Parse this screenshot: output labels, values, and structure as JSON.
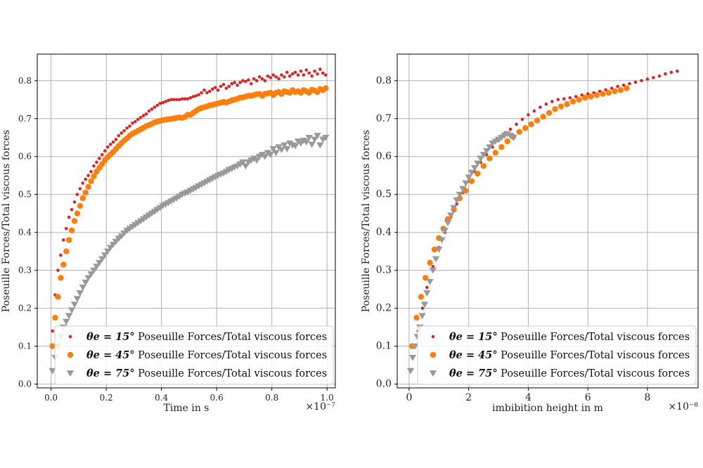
{
  "chart_data": [
    {
      "type": "scatter",
      "xlabel": "Time in s",
      "ylabel": "Poseuille Forces/Total viscous forces",
      "x_offset_label": "×10⁻⁷",
      "xlim": [
        -0.05,
        1.03
      ],
      "ylim": [
        -0.01,
        0.87
      ],
      "x_ticks": [
        0.0,
        0.2,
        0.4,
        0.6,
        0.8,
        1.0
      ],
      "x_tick_labels": [
        "0.0",
        "0.2",
        "0.4",
        "0.6",
        "0.8",
        "1.0"
      ],
      "y_ticks": [
        0.0,
        0.1,
        0.2,
        0.3,
        0.4,
        0.5,
        0.6,
        0.7,
        0.8
      ],
      "y_tick_labels": [
        "0.0",
        "0.1",
        "0.2",
        "0.3",
        "0.4",
        "0.5",
        "0.6",
        "0.7",
        "0.8"
      ],
      "grid": true,
      "legend_position": "bottom-right",
      "series": [
        {
          "name": "θe = 15° Poseuille Forces/Total viscous forces",
          "legend_math": "θe = 15°",
          "legend_text": "Poseuille Forces/Total viscous forces",
          "color": "#d62728",
          "marker": "small-dot",
          "x": [
            0.005,
            0.015,
            0.025,
            0.035,
            0.045,
            0.055,
            0.065,
            0.075,
            0.085,
            0.095,
            0.105,
            0.115,
            0.125,
            0.135,
            0.145,
            0.155,
            0.165,
            0.175,
            0.185,
            0.195,
            0.205,
            0.215,
            0.225,
            0.235,
            0.245,
            0.255,
            0.265,
            0.275,
            0.285,
            0.295,
            0.305,
            0.315,
            0.325,
            0.335,
            0.345,
            0.355,
            0.365,
            0.375,
            0.385,
            0.395,
            0.405,
            0.415,
            0.425,
            0.435,
            0.445,
            0.455,
            0.465,
            0.475,
            0.485,
            0.495,
            0.505,
            0.515,
            0.525,
            0.535,
            0.545,
            0.555,
            0.565,
            0.575,
            0.585,
            0.595,
            0.605,
            0.615,
            0.625,
            0.635,
            0.645,
            0.655,
            0.665,
            0.675,
            0.685,
            0.695,
            0.705,
            0.715,
            0.725,
            0.735,
            0.745,
            0.755,
            0.765,
            0.775,
            0.785,
            0.795,
            0.805,
            0.815,
            0.825,
            0.835,
            0.845,
            0.855,
            0.865,
            0.875,
            0.885,
            0.895,
            0.905,
            0.915,
            0.925,
            0.935,
            0.945,
            0.955,
            0.965,
            0.975,
            0.985,
            0.995
          ],
          "y": [
            0.14,
            0.235,
            0.3,
            0.34,
            0.38,
            0.41,
            0.44,
            0.46,
            0.48,
            0.5,
            0.515,
            0.53,
            0.54,
            0.55,
            0.56,
            0.575,
            0.585,
            0.595,
            0.605,
            0.615,
            0.625,
            0.632,
            0.638,
            0.645,
            0.655,
            0.662,
            0.668,
            0.675,
            0.68,
            0.688,
            0.692,
            0.698,
            0.703,
            0.708,
            0.712,
            0.72,
            0.725,
            0.73,
            0.735,
            0.74,
            0.742,
            0.745,
            0.748,
            0.75,
            0.75,
            0.75,
            0.75,
            0.752,
            0.752,
            0.752,
            0.755,
            0.758,
            0.76,
            0.763,
            0.768,
            0.775,
            0.768,
            0.772,
            0.778,
            0.782,
            0.775,
            0.785,
            0.79,
            0.78,
            0.785,
            0.792,
            0.795,
            0.788,
            0.795,
            0.8,
            0.798,
            0.802,
            0.792,
            0.805,
            0.8,
            0.81,
            0.805,
            0.8,
            0.812,
            0.808,
            0.815,
            0.81,
            0.805,
            0.815,
            0.81,
            0.822,
            0.812,
            0.818,
            0.822,
            0.815,
            0.825,
            0.815,
            0.828,
            0.82,
            0.812,
            0.825,
            0.818,
            0.83,
            0.82,
            0.815
          ]
        },
        {
          "name": "θe = 45° Poseuille Forces/Total viscous forces",
          "legend_math": "θe = 45°",
          "legend_text": "Poseuille Forces/Total viscous forces",
          "color": "#ff7f0e",
          "marker": "large-dot",
          "x": [
            0.005,
            0.015,
            0.025,
            0.035,
            0.045,
            0.055,
            0.065,
            0.075,
            0.085,
            0.095,
            0.105,
            0.115,
            0.125,
            0.135,
            0.145,
            0.155,
            0.165,
            0.175,
            0.185,
            0.195,
            0.205,
            0.215,
            0.225,
            0.235,
            0.245,
            0.255,
            0.265,
            0.275,
            0.285,
            0.295,
            0.305,
            0.315,
            0.325,
            0.335,
            0.345,
            0.355,
            0.365,
            0.375,
            0.385,
            0.395,
            0.405,
            0.415,
            0.425,
            0.435,
            0.445,
            0.455,
            0.465,
            0.475,
            0.485,
            0.495,
            0.505,
            0.515,
            0.525,
            0.535,
            0.545,
            0.555,
            0.565,
            0.575,
            0.585,
            0.595,
            0.605,
            0.615,
            0.625,
            0.635,
            0.645,
            0.655,
            0.665,
            0.675,
            0.685,
            0.695,
            0.705,
            0.715,
            0.725,
            0.735,
            0.745,
            0.755,
            0.765,
            0.775,
            0.785,
            0.795,
            0.805,
            0.815,
            0.825,
            0.835,
            0.845,
            0.855,
            0.865,
            0.875,
            0.885,
            0.895,
            0.905,
            0.915,
            0.925,
            0.935,
            0.945,
            0.955,
            0.965,
            0.975,
            0.985,
            0.995
          ],
          "y": [
            0.1,
            0.175,
            0.23,
            0.28,
            0.315,
            0.35,
            0.38,
            0.405,
            0.43,
            0.45,
            0.47,
            0.49,
            0.505,
            0.52,
            0.535,
            0.548,
            0.56,
            0.57,
            0.58,
            0.59,
            0.598,
            0.605,
            0.612,
            0.62,
            0.628,
            0.635,
            0.642,
            0.648,
            0.655,
            0.66,
            0.664,
            0.668,
            0.672,
            0.676,
            0.68,
            0.683,
            0.686,
            0.69,
            0.692,
            0.694,
            0.696,
            0.697,
            0.698,
            0.699,
            0.7,
            0.702,
            0.703,
            0.702,
            0.704,
            0.71,
            0.71,
            0.715,
            0.72,
            0.725,
            0.728,
            0.73,
            0.732,
            0.735,
            0.736,
            0.738,
            0.74,
            0.742,
            0.744,
            0.742,
            0.745,
            0.748,
            0.75,
            0.752,
            0.755,
            0.756,
            0.758,
            0.76,
            0.76,
            0.762,
            0.764,
            0.765,
            0.76,
            0.765,
            0.766,
            0.768,
            0.762,
            0.768,
            0.77,
            0.765,
            0.772,
            0.77,
            0.768,
            0.775,
            0.77,
            0.772,
            0.768,
            0.775,
            0.772,
            0.768,
            0.776,
            0.774,
            0.77,
            0.778,
            0.775,
            0.78
          ]
        },
        {
          "name": "θe = 75° Poseuille Forces/Total viscous forces",
          "legend_math": "θe = 75°",
          "legend_text": "Poseuille Forces/Total viscous forces",
          "color": "#999999",
          "marker": "triangle-down",
          "x": [
            0.005,
            0.015,
            0.025,
            0.035,
            0.045,
            0.055,
            0.065,
            0.075,
            0.085,
            0.095,
            0.105,
            0.115,
            0.125,
            0.135,
            0.145,
            0.155,
            0.165,
            0.175,
            0.185,
            0.195,
            0.205,
            0.215,
            0.225,
            0.235,
            0.245,
            0.255,
            0.265,
            0.275,
            0.285,
            0.295,
            0.305,
            0.315,
            0.325,
            0.335,
            0.345,
            0.355,
            0.365,
            0.375,
            0.385,
            0.395,
            0.405,
            0.415,
            0.425,
            0.435,
            0.445,
            0.455,
            0.465,
            0.475,
            0.485,
            0.495,
            0.505,
            0.515,
            0.525,
            0.535,
            0.545,
            0.555,
            0.565,
            0.575,
            0.585,
            0.595,
            0.605,
            0.615,
            0.625,
            0.635,
            0.645,
            0.655,
            0.665,
            0.675,
            0.685,
            0.695,
            0.705,
            0.715,
            0.725,
            0.735,
            0.745,
            0.755,
            0.765,
            0.775,
            0.785,
            0.795,
            0.805,
            0.815,
            0.825,
            0.835,
            0.845,
            0.855,
            0.865,
            0.875,
            0.885,
            0.895,
            0.905,
            0.915,
            0.925,
            0.935,
            0.945,
            0.955,
            0.965,
            0.975,
            0.985,
            0.995
          ],
          "y": [
            0.035,
            0.07,
            0.1,
            0.125,
            0.15,
            0.165,
            0.18,
            0.195,
            0.21,
            0.225,
            0.24,
            0.255,
            0.268,
            0.28,
            0.29,
            0.3,
            0.31,
            0.32,
            0.33,
            0.34,
            0.35,
            0.36,
            0.368,
            0.376,
            0.384,
            0.39,
            0.398,
            0.405,
            0.41,
            0.415,
            0.42,
            0.425,
            0.43,
            0.435,
            0.44,
            0.445,
            0.45,
            0.455,
            0.46,
            0.465,
            0.47,
            0.474,
            0.478,
            0.482,
            0.486,
            0.49,
            0.495,
            0.5,
            0.503,
            0.506,
            0.51,
            0.514,
            0.518,
            0.522,
            0.526,
            0.53,
            0.534,
            0.538,
            0.542,
            0.546,
            0.55,
            0.553,
            0.556,
            0.56,
            0.565,
            0.568,
            0.572,
            0.575,
            0.58,
            0.585,
            0.575,
            0.585,
            0.59,
            0.595,
            0.59,
            0.6,
            0.605,
            0.6,
            0.61,
            0.605,
            0.62,
            0.61,
            0.625,
            0.618,
            0.63,
            0.62,
            0.635,
            0.63,
            0.628,
            0.64,
            0.635,
            0.642,
            0.638,
            0.65,
            0.632,
            0.645,
            0.655,
            0.63,
            0.645,
            0.65
          ]
        }
      ]
    },
    {
      "type": "scatter",
      "xlabel": "imbibition height in m",
      "ylabel": "Poseuille Forces/Total viscous forces",
      "x_offset_label": "×10⁻⁸",
      "xlim": [
        -0.4,
        9.7
      ],
      "ylim": [
        -0.01,
        0.87
      ],
      "x_ticks": [
        0,
        2,
        4,
        6,
        8
      ],
      "x_tick_labels": [
        "0",
        "2",
        "4",
        "6",
        "8"
      ],
      "y_ticks": [
        0.0,
        0.1,
        0.2,
        0.3,
        0.4,
        0.5,
        0.6,
        0.7,
        0.8
      ],
      "y_tick_labels": [
        "0.0",
        "0.1",
        "0.2",
        "0.3",
        "0.4",
        "0.5",
        "0.6",
        "0.7",
        "0.8"
      ],
      "grid": true,
      "legend_position": "bottom-right",
      "series": [
        {
          "name": "θe = 15° Poseuille Forces/Total viscous forces",
          "legend_math": "θe = 15°",
          "legend_text": "Poseuille Forces/Total viscous forces",
          "color": "#d62728",
          "marker": "small-dot",
          "x": [
            0.3,
            0.45,
            0.6,
            0.8,
            1.0,
            1.2,
            1.4,
            1.6,
            1.8,
            2.0,
            2.2,
            2.4,
            2.6,
            2.8,
            3.0,
            3.2,
            3.4,
            3.6,
            3.8,
            4.0,
            4.2,
            4.4,
            4.6,
            4.8,
            5.0,
            5.2,
            5.4,
            5.6,
            5.8,
            6.0,
            6.2,
            6.4,
            6.6,
            6.8,
            7.0,
            7.2,
            7.4,
            7.6,
            7.8,
            8.0,
            8.2,
            8.4,
            8.6,
            8.8,
            9.0
          ],
          "y": [
            0.14,
            0.2,
            0.255,
            0.31,
            0.36,
            0.4,
            0.44,
            0.475,
            0.505,
            0.535,
            0.56,
            0.585,
            0.605,
            0.625,
            0.642,
            0.66,
            0.672,
            0.685,
            0.698,
            0.71,
            0.72,
            0.73,
            0.738,
            0.745,
            0.75,
            0.752,
            0.755,
            0.758,
            0.762,
            0.765,
            0.768,
            0.772,
            0.776,
            0.78,
            0.785,
            0.788,
            0.792,
            0.796,
            0.8,
            0.804,
            0.808,
            0.812,
            0.818,
            0.822,
            0.825
          ]
        },
        {
          "name": "θe = 45° Poseuille Forces/Total viscous forces",
          "legend_math": "θe = 45°",
          "legend_text": "Poseuille Forces/Total viscous forces",
          "color": "#ff7f0e",
          "marker": "large-dot",
          "x": [
            0.1,
            0.25,
            0.4,
            0.55,
            0.7,
            0.85,
            1.0,
            1.15,
            1.3,
            1.5,
            1.7,
            1.9,
            2.1,
            2.3,
            2.5,
            2.7,
            2.9,
            3.1,
            3.3,
            3.5,
            3.7,
            3.9,
            4.1,
            4.3,
            4.5,
            4.7,
            4.9,
            5.1,
            5.3,
            5.5,
            5.7,
            5.9,
            6.1,
            6.3,
            6.5,
            6.7,
            6.9,
            7.1,
            7.3
          ],
          "y": [
            0.1,
            0.175,
            0.23,
            0.28,
            0.32,
            0.355,
            0.385,
            0.41,
            0.435,
            0.46,
            0.49,
            0.51,
            0.535,
            0.555,
            0.575,
            0.595,
            0.61,
            0.625,
            0.64,
            0.652,
            0.665,
            0.675,
            0.685,
            0.695,
            0.705,
            0.715,
            0.725,
            0.732,
            0.738,
            0.745,
            0.75,
            0.755,
            0.758,
            0.762,
            0.765,
            0.768,
            0.772,
            0.775,
            0.78
          ]
        },
        {
          "name": "θe = 75° Poseuille Forces/Total viscous forces",
          "legend_math": "θe = 75°",
          "legend_text": "Poseuille Forces/Total viscous forces",
          "color": "#999999",
          "marker": "triangle-down",
          "x": [
            0.05,
            0.12,
            0.2,
            0.28,
            0.36,
            0.44,
            0.52,
            0.6,
            0.7,
            0.8,
            0.9,
            1.0,
            1.1,
            1.2,
            1.3,
            1.4,
            1.5,
            1.6,
            1.7,
            1.8,
            1.9,
            2.0,
            2.1,
            2.2,
            2.3,
            2.4,
            2.5,
            2.6,
            2.7,
            2.8,
            2.9,
            3.0,
            3.1,
            3.2,
            3.3,
            3.4,
            3.5
          ],
          "y": [
            0.035,
            0.07,
            0.1,
            0.125,
            0.15,
            0.18,
            0.21,
            0.24,
            0.27,
            0.3,
            0.33,
            0.355,
            0.38,
            0.405,
            0.425,
            0.445,
            0.465,
            0.485,
            0.5,
            0.515,
            0.53,
            0.545,
            0.558,
            0.57,
            0.582,
            0.595,
            0.605,
            0.615,
            0.625,
            0.635,
            0.64,
            0.645,
            0.65,
            0.655,
            0.66,
            0.655,
            0.65
          ]
        }
      ]
    }
  ]
}
